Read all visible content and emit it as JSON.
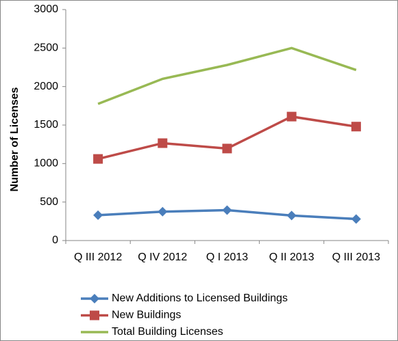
{
  "chart_data": {
    "type": "line",
    "y_label": "Number of Licenses",
    "categories": [
      "Q III 2012",
      "Q IV 2012",
      "Q I 2013",
      "Q II 2013",
      "Q III 2013"
    ],
    "series": [
      {
        "name": "New Additions to Licensed Buildings",
        "color": "#4a7ebb",
        "marker": "diamond",
        "values": [
          330,
          375,
          395,
          325,
          280
        ]
      },
      {
        "name": "New Buildings",
        "color": "#be4b48",
        "marker": "square",
        "values": [
          1060,
          1265,
          1195,
          1610,
          1480
        ]
      },
      {
        "name": "Total Building Licenses",
        "color": "#98b954",
        "marker": "none",
        "values": [
          1775,
          2100,
          2280,
          2500,
          2215
        ]
      }
    ],
    "ylim": [
      0,
      3000
    ],
    "yticks": [
      0,
      500,
      1000,
      1500,
      2000,
      2500,
      3000
    ],
    "grid": false,
    "legend": "bottom"
  }
}
